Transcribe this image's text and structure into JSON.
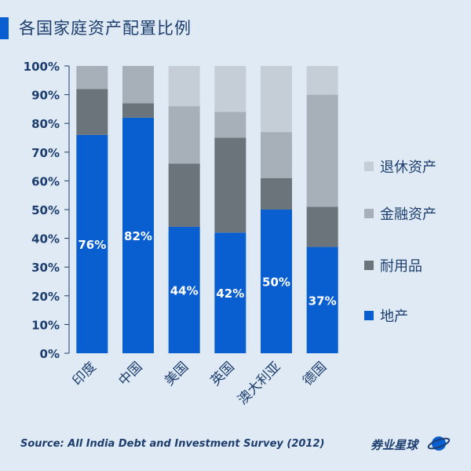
{
  "header": {
    "title": "各国家庭资产配置比例"
  },
  "footer": {
    "source": "Source: All India Debt and Investment Survey (2012)",
    "brand": "券业星球",
    "brand_icon": "planet-icon"
  },
  "chart_data": {
    "type": "bar",
    "stacked": true,
    "title": "各国家庭资产配置比例",
    "categories": [
      "印度",
      "中国",
      "美国",
      "英国",
      "澳大利亚",
      "德国"
    ],
    "series": [
      {
        "name": "地产",
        "color": "#0a5fd0",
        "values": [
          76,
          82,
          44,
          42,
          50,
          37
        ],
        "labels": [
          "76%",
          "82%",
          "44%",
          "42%",
          "50%",
          "37%"
        ]
      },
      {
        "name": "耐用品",
        "color": "#6b737b",
        "values": [
          16,
          5,
          22,
          33,
          11,
          14
        ]
      },
      {
        "name": "金融资产",
        "color": "#a7b0b8",
        "values": [
          8,
          13,
          20,
          9,
          16,
          39
        ]
      },
      {
        "name": "退休资产",
        "color": "#c5ced6",
        "values": [
          0,
          0,
          14,
          16,
          23,
          10
        ]
      }
    ],
    "ylim": [
      0,
      100
    ],
    "yticks": [
      "0%",
      "10%",
      "20%",
      "30%",
      "40%",
      "50%",
      "60%",
      "70%",
      "80%",
      "90%",
      "100%"
    ],
    "legend_order": [
      "退休资产",
      "金融资产",
      "耐用品",
      "地产"
    ],
    "legend_position": "right",
    "xlabel": "",
    "ylabel": ""
  }
}
